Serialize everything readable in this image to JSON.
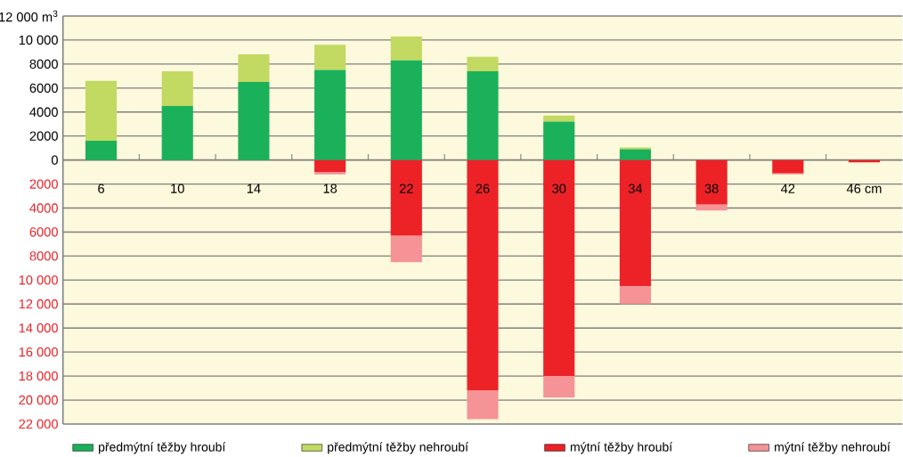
{
  "chart_data": {
    "type": "bar",
    "stacked": true,
    "categories": [
      "6",
      "10",
      "14",
      "18",
      "22",
      "26",
      "30",
      "34",
      "38",
      "42",
      "46 cm"
    ],
    "series": [
      {
        "name": "předmýtní těžby hroubí",
        "color": "#1bb15a",
        "values": [
          1600,
          4500,
          6500,
          7500,
          8300,
          7400,
          3200,
          900,
          null,
          null,
          null
        ]
      },
      {
        "name": "předmýtní těžby nehroubí",
        "color": "#c2d962",
        "values": [
          5000,
          2900,
          2300,
          2100,
          2000,
          1200,
          500,
          150,
          null,
          null,
          null
        ]
      },
      {
        "name": "mýtní těžby hroubí",
        "color": "#ec2227",
        "values": [
          null,
          null,
          null,
          -1000,
          -6300,
          -19200,
          -18000,
          -10500,
          -3700,
          -1100,
          -200
        ]
      },
      {
        "name": "mýtní těžby nehroubí",
        "color": "#f59396",
        "values": [
          null,
          null,
          null,
          -200,
          -2200,
          -2400,
          -1800,
          -1500,
          -500,
          -100,
          null
        ]
      }
    ],
    "ylim": [
      -22000,
      12000
    ],
    "yticks": [
      {
        "value": -22000,
        "label": "22 000"
      },
      {
        "value": -20000,
        "label": "20 000"
      },
      {
        "value": -18000,
        "label": "18 000"
      },
      {
        "value": -16000,
        "label": "16 000"
      },
      {
        "value": -14000,
        "label": "14 000"
      },
      {
        "value": -12000,
        "label": "12 000"
      },
      {
        "value": -10000,
        "label": "10 000"
      },
      {
        "value": -8000,
        "label": "8000"
      },
      {
        "value": -6000,
        "label": "6000"
      },
      {
        "value": -4000,
        "label": "4000"
      },
      {
        "value": -2000,
        "label": "2000"
      },
      0,
      2000,
      4000,
      6000,
      8000,
      {
        "value": 10000,
        "label": "10 000"
      },
      {
        "value": 12000,
        "label": "12 000 m$^{3}$"
      }
    ],
    "grid": "y",
    "legend": "bottom"
  }
}
